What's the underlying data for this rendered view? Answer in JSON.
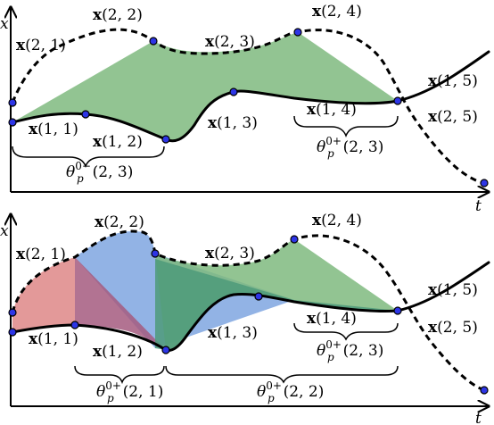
{
  "colors": {
    "green": "#7fba7f",
    "red": "#dc7f7f",
    "blue": "#7fa6e0",
    "teal": "#4d9a7a",
    "magenta": "#a45a7f",
    "point": "#2d35e6"
  },
  "axes": {
    "x_label": "x",
    "t_label": "t"
  },
  "top": {
    "labels": {
      "x21": "(2, 1)",
      "x22": "(2, 2)",
      "x23": "(2, 3)",
      "x24": "(2, 4)",
      "x25": "(2, 5)",
      "x11": "(1, 1)",
      "x12": "(1, 2)",
      "x13": "(1, 3)",
      "x14": "(1, 4)",
      "x15": "(1, 5)"
    },
    "brace_left": {
      "theta": "θ",
      "sub": "p",
      "sup": "0−",
      "args": "(2, 3)"
    },
    "brace_right": {
      "theta": "θ",
      "sub": "p",
      "sup": "0+",
      "args": "(2, 3)"
    }
  },
  "bottom": {
    "labels": {
      "x21": "(2, 1)",
      "x22": "(2, 2)",
      "x23": "(2, 3)",
      "x24": "(2, 4)",
      "x25": "(2, 5)",
      "x11": "(1, 1)",
      "x12": "(1, 2)",
      "x13": "(1, 3)",
      "x14": "(1, 4)",
      "x15": "(1, 5)"
    },
    "brace_a": {
      "theta": "θ",
      "sub": "p",
      "sup": "0+",
      "args": "(2, 1)"
    },
    "brace_b": {
      "theta": "θ",
      "sub": "p",
      "sup": "0+",
      "args": "(2, 2)"
    },
    "brace_c": {
      "theta": "θ",
      "sub": "p",
      "sup": "0+",
      "args": "(2, 3)"
    }
  }
}
